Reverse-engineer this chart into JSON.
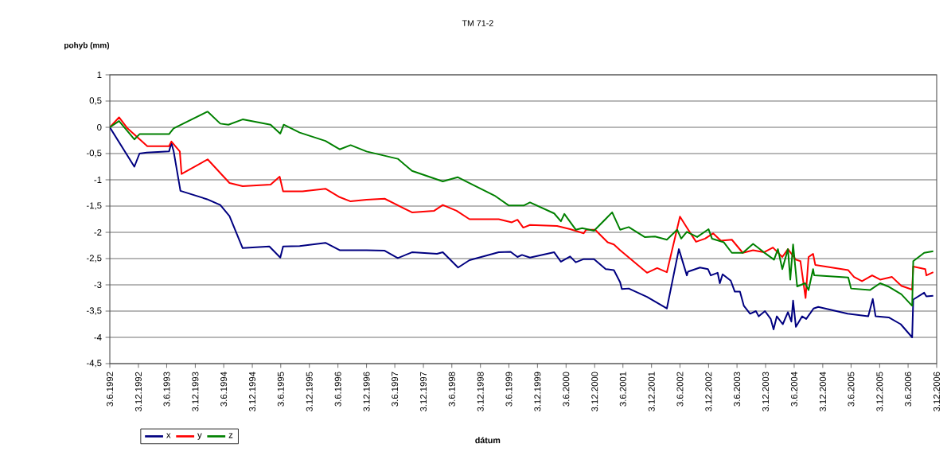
{
  "chart_data": {
    "type": "line",
    "title": "TM 71-2",
    "xlabel": "dátum",
    "ylabel": "pohyb (mm)",
    "grid": "y",
    "legend": "bottom left",
    "xlim": [
      "1992-06-03",
      "2006-12-03"
    ],
    "ylim": [
      -4.5,
      1
    ],
    "xticks": [
      {
        "value": "1992-06-03",
        "label": "3.6.1992"
      },
      {
        "value": "1992-12-03",
        "label": "3.12.1992"
      },
      {
        "value": "1993-06-03",
        "label": "3.6.1993"
      },
      {
        "value": "1993-12-03",
        "label": "3.12.1993"
      },
      {
        "value": "1994-06-03",
        "label": "3.6.1994"
      },
      {
        "value": "1994-12-03",
        "label": "3.12.1994"
      },
      {
        "value": "1995-06-03",
        "label": "3.6.1995"
      },
      {
        "value": "1995-12-03",
        "label": "3.12.1995"
      },
      {
        "value": "1996-06-03",
        "label": "3.6.1996"
      },
      {
        "value": "1996-12-03",
        "label": "3.12.1996"
      },
      {
        "value": "1997-06-03",
        "label": "3.6.1997"
      },
      {
        "value": "1997-12-03",
        "label": "3.12.1997"
      },
      {
        "value": "1998-06-03",
        "label": "3.6.1998"
      },
      {
        "value": "1998-12-03",
        "label": "3.12.1998"
      },
      {
        "value": "1999-06-03",
        "label": "3.6.1999"
      },
      {
        "value": "1999-12-03",
        "label": "3.12.1999"
      },
      {
        "value": "2000-06-03",
        "label": "3.6.2000"
      },
      {
        "value": "2000-12-03",
        "label": "3.12.2000"
      },
      {
        "value": "2001-06-03",
        "label": "3.6.2001"
      },
      {
        "value": "2001-12-03",
        "label": "3.12.2001"
      },
      {
        "value": "2002-06-03",
        "label": "3.6.2002"
      },
      {
        "value": "2002-12-03",
        "label": "3.12.2002"
      },
      {
        "value": "2003-06-03",
        "label": "3.6.2003"
      },
      {
        "value": "2003-12-03",
        "label": "3.12.2003"
      },
      {
        "value": "2004-06-03",
        "label": "3.6.2004"
      },
      {
        "value": "2004-12-03",
        "label": "3.12.2004"
      },
      {
        "value": "2005-06-03",
        "label": "3.6.2005"
      },
      {
        "value": "2005-12-03",
        "label": "3.12.2005"
      },
      {
        "value": "2006-06-03",
        "label": "3.6.2006"
      },
      {
        "value": "2006-12-03",
        "label": "3.12.2006"
      }
    ],
    "yticks": [
      {
        "value": 1,
        "label": "1"
      },
      {
        "value": 0.5,
        "label": "0,5"
      },
      {
        "value": 0,
        "label": "0"
      },
      {
        "value": -0.5,
        "label": "-0,5"
      },
      {
        "value": -1,
        "label": "-1"
      },
      {
        "value": -1.5,
        "label": "-1,5"
      },
      {
        "value": -2,
        "label": "-2"
      },
      {
        "value": -2.5,
        "label": "-2,5"
      },
      {
        "value": -3,
        "label": "-3"
      },
      {
        "value": -3.5,
        "label": "-3,5"
      },
      {
        "value": -4,
        "label": "-4"
      },
      {
        "value": -4.5,
        "label": "-4,5"
      }
    ],
    "series": [
      {
        "name": "x",
        "color": "#000080",
        "x": [
          "1992-06-03",
          "1992-11-07",
          "1992-12-10",
          "1993-01-26",
          "1993-06-18",
          "1993-07-03",
          "1993-07-17",
          "1993-08-30",
          "1994-02-17",
          "1994-05-12",
          "1994-07-10",
          "1994-10-02",
          "1995-03-22",
          "1995-05-31",
          "1995-06-18",
          "1995-10-02",
          "1996-03-15",
          "1996-06-14",
          "1996-12-03",
          "1997-03-30",
          "1997-06-22",
          "1997-09-21",
          "1998-02-28",
          "1998-04-06",
          "1998-07-13",
          "1998-09-24",
          "1999-03-30",
          "1999-06-14",
          "1999-07-28",
          "1999-08-26",
          "1999-10-16",
          "2000-03-19",
          "2000-05-01",
          "2000-06-29",
          "2000-08-04",
          "2000-09-24",
          "2000-11-29",
          "2001-02-13",
          "2001-04-06",
          "2001-05-16",
          "2001-05-27",
          "2001-07-10",
          "2001-11-04",
          "2002-03-11",
          "2002-05-27",
          "2002-07-17",
          "2002-07-24",
          "2002-10-09",
          "2002-11-29",
          "2002-12-17",
          "2003-01-30",
          "2003-02-13",
          "2003-03-03",
          "2003-04-24",
          "2003-05-20",
          "2003-06-22",
          "2003-07-17",
          "2003-08-26",
          "2003-10-02",
          "2003-10-20",
          "2003-11-29",
          "2004-01-05",
          "2004-01-23",
          "2004-02-13",
          "2004-03-22",
          "2004-04-24",
          "2004-05-16",
          "2004-05-27",
          "2004-06-14",
          "2004-07-24",
          "2004-08-19",
          "2004-10-05",
          "2004-11-04",
          "2005-05-12",
          "2005-09-21",
          "2005-10-20",
          "2005-11-07",
          "2006-01-30",
          "2006-04-17",
          "2006-06-29",
          "2006-07-06",
          "2006-09-14",
          "2006-09-28",
          "2006-11-11"
        ],
        "values": [
          0,
          -0.75,
          -0.5,
          -0.48,
          -0.46,
          -0.3,
          -0.45,
          -1.21,
          -1.37,
          -1.48,
          -1.69,
          -2.3,
          -2.27,
          -2.48,
          -2.27,
          -2.26,
          -2.2,
          -2.34,
          -2.34,
          -2.35,
          -2.49,
          -2.38,
          -2.41,
          -2.38,
          -2.67,
          -2.53,
          -2.38,
          -2.37,
          -2.47,
          -2.43,
          -2.48,
          -2.38,
          -2.56,
          -2.46,
          -2.57,
          -2.51,
          -2.51,
          -2.7,
          -2.72,
          -2.95,
          -3.08,
          -3.07,
          -3.23,
          -3.45,
          -2.32,
          -2.82,
          -2.75,
          -2.67,
          -2.7,
          -2.82,
          -2.77,
          -2.97,
          -2.8,
          -2.92,
          -3.13,
          -3.13,
          -3.4,
          -3.55,
          -3.5,
          -3.6,
          -3.5,
          -3.65,
          -3.85,
          -3.6,
          -3.75,
          -3.52,
          -3.7,
          -3.3,
          -3.8,
          -3.6,
          -3.65,
          -3.45,
          -3.42,
          -3.55,
          -3.6,
          -3.27,
          -3.6,
          -3.62,
          -3.75,
          -4.0,
          -3.28,
          -3.15,
          -3.22,
          -3.21
        ]
      },
      {
        "name": "y",
        "color": "#ff0000",
        "x": [
          "1992-06-03",
          "1992-08-01",
          "1992-09-24",
          "1993-01-30",
          "1993-06-18",
          "1993-07-03",
          "1993-08-26",
          "1993-09-06",
          "1994-02-20",
          "1994-07-10",
          "1994-10-02",
          "1995-03-30",
          "1995-05-27",
          "1995-06-18",
          "1995-10-20",
          "1996-03-15",
          "1996-06-14",
          "1996-08-23",
          "1996-12-03",
          "1997-03-30",
          "1997-09-21",
          "1998-02-10",
          "1998-04-06",
          "1998-07-03",
          "1998-09-24",
          "1999-03-30",
          "1999-06-22",
          "1999-07-28",
          "1999-09-03",
          "1999-10-16",
          "2000-04-06",
          "2000-06-29",
          "2000-09-24",
          "2000-10-09",
          "2000-12-06",
          "2001-02-25",
          "2001-04-06",
          "2001-05-16",
          "2001-11-04",
          "2002-01-08",
          "2002-03-11",
          "2002-06-03",
          "2002-07-17",
          "2002-09-14",
          "2002-11-11",
          "2003-01-01",
          "2003-02-20",
          "2003-05-01",
          "2003-07-10",
          "2003-09-14",
          "2003-11-22",
          "2004-01-19",
          "2004-03-19",
          "2004-04-24",
          "2004-06-14",
          "2004-07-13",
          "2004-08-15",
          "2004-09-03",
          "2004-10-02",
          "2004-10-16",
          "2005-05-16",
          "2005-06-22",
          "2005-08-12",
          "2005-10-16",
          "2005-12-06",
          "2006-02-20",
          "2006-04-21",
          "2006-06-29",
          "2006-07-06",
          "2006-09-21",
          "2006-09-28",
          "2006-11-11"
        ],
        "values": [
          0,
          0.19,
          -0.02,
          -0.36,
          -0.36,
          -0.27,
          -0.46,
          -0.89,
          -0.61,
          -1.06,
          -1.12,
          -1.09,
          -0.94,
          -1.22,
          -1.22,
          -1.17,
          -1.33,
          -1.41,
          -1.38,
          -1.36,
          -1.62,
          -1.59,
          -1.48,
          -1.59,
          -1.75,
          -1.75,
          -1.81,
          -1.76,
          -1.91,
          -1.86,
          -1.88,
          -1.94,
          -2.02,
          -1.95,
          -1.95,
          -2.19,
          -2.23,
          -2.34,
          -2.77,
          -2.68,
          -2.76,
          -1.7,
          -1.91,
          -2.18,
          -2.12,
          -2.02,
          -2.16,
          -2.14,
          -2.39,
          -2.34,
          -2.38,
          -2.29,
          -2.47,
          -2.32,
          -2.52,
          -2.55,
          -3.25,
          -2.47,
          -2.41,
          -2.62,
          -2.72,
          -2.85,
          -2.93,
          -2.82,
          -2.9,
          -2.85,
          -3.02,
          -3.09,
          -2.65,
          -2.7,
          -2.82,
          -2.76
        ]
      },
      {
        "name": "z",
        "color": "#008000",
        "x": [
          "1992-06-03",
          "1992-08-01",
          "1992-11-07",
          "1992-12-10",
          "1993-06-18",
          "1993-07-17",
          "1994-02-20",
          "1994-05-12",
          "1994-07-03",
          "1994-10-02",
          "1995-03-30",
          "1995-05-31",
          "1995-06-22",
          "1995-10-02",
          "1996-03-15",
          "1996-06-14",
          "1996-08-23",
          "1996-12-03",
          "1997-06-22",
          "1997-09-21",
          "1998-04-06",
          "1998-07-10",
          "1998-09-21",
          "1999-03-03",
          "1999-06-03",
          "1999-09-06",
          "1999-10-16",
          "2000-03-19",
          "2000-05-01",
          "2000-05-23",
          "2000-08-04",
          "2000-09-14",
          "2000-11-29",
          "2001-03-26",
          "2001-05-16",
          "2001-07-10",
          "2001-10-20",
          "2001-12-25",
          "2002-03-11",
          "2002-05-16",
          "2002-06-11",
          "2002-07-17",
          "2002-09-21",
          "2002-12-03",
          "2002-12-25",
          "2003-03-11",
          "2003-05-01",
          "2003-07-10",
          "2003-09-14",
          "2003-11-22",
          "2004-01-26",
          "2004-02-20",
          "2004-03-19",
          "2004-04-24",
          "2004-05-09",
          "2004-05-27",
          "2004-06-22",
          "2004-08-12",
          "2004-09-03",
          "2004-10-02",
          "2004-10-09",
          "2005-05-16",
          "2005-06-03",
          "2005-10-02",
          "2005-12-06",
          "2006-01-26",
          "2006-04-21",
          "2006-06-29",
          "2006-07-06",
          "2006-09-14",
          "2006-11-11"
        ],
        "values": [
          0,
          0.12,
          -0.23,
          -0.13,
          -0.13,
          -0.02,
          0.3,
          0.07,
          0.05,
          0.15,
          0.05,
          -0.12,
          0.05,
          -0.1,
          -0.26,
          -0.42,
          -0.34,
          -0.46,
          -0.6,
          -0.83,
          -1.03,
          -0.95,
          -1.06,
          -1.3,
          -1.49,
          -1.49,
          -1.43,
          -1.64,
          -1.79,
          -1.65,
          -1.95,
          -1.92,
          -1.97,
          -1.62,
          -1.95,
          -1.9,
          -2.09,
          -2.08,
          -2.14,
          -1.95,
          -2.12,
          -1.99,
          -2.09,
          -1.94,
          -2.12,
          -2.19,
          -2.39,
          -2.39,
          -2.22,
          -2.38,
          -2.52,
          -2.32,
          -2.7,
          -2.32,
          -2.9,
          -2.23,
          -3.03,
          -2.97,
          -3.1,
          -2.7,
          -2.82,
          -2.86,
          -3.07,
          -3.1,
          -2.97,
          -3.03,
          -3.18,
          -3.4,
          -2.55,
          -2.39,
          -2.36
        ]
      }
    ]
  }
}
